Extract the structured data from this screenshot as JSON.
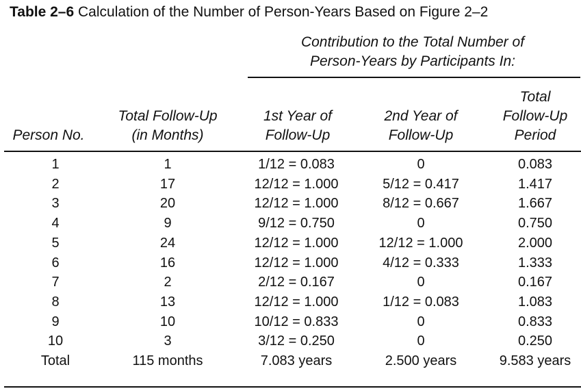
{
  "table": {
    "label": "Table 2–6",
    "title": "Calculation of the Number of Person-Years Based on Figure 2–2",
    "spanner_line1": "Contribution to the Total Number of",
    "spanner_line2": "Person-Years by Participants In:",
    "headers": {
      "person": [
        "Person No."
      ],
      "followup": [
        "Total Follow-Up",
        "(in Months)"
      ],
      "year1": [
        "1st Year of",
        "Follow-Up"
      ],
      "year2": [
        "2nd Year of",
        "Follow-Up"
      ],
      "total": [
        "Total",
        "Follow-Up",
        "Period"
      ]
    },
    "rows": [
      {
        "person": "1",
        "months": "1",
        "year1": "1/12 = 0.083",
        "year2": "0",
        "total": "0.083"
      },
      {
        "person": "2",
        "months": "17",
        "year1": "12/12 = 1.000",
        "year2": "5/12 = 0.417",
        "total": "1.417"
      },
      {
        "person": "3",
        "months": "20",
        "year1": "12/12 = 1.000",
        "year2": "8/12 = 0.667",
        "total": "1.667"
      },
      {
        "person": "4",
        "months": "9",
        "year1": "9/12 = 0.750",
        "year2": "0",
        "total": "0.750"
      },
      {
        "person": "5",
        "months": "24",
        "year1": "12/12 = 1.000",
        "year2": "12/12 = 1.000",
        "total": "2.000"
      },
      {
        "person": "6",
        "months": "16",
        "year1": "12/12 = 1.000",
        "year2": "4/12 = 0.333",
        "total": "1.333"
      },
      {
        "person": "7",
        "months": "2",
        "year1": "2/12 = 0.167",
        "year2": "0",
        "total": "0.167"
      },
      {
        "person": "8",
        "months": "13",
        "year1": "12/12 = 1.000",
        "year2": "1/12 = 0.083",
        "total": "1.083"
      },
      {
        "person": "9",
        "months": "10",
        "year1": "10/12 = 0.833",
        "year2": "0",
        "total": "0.833"
      },
      {
        "person": "10",
        "months": "3",
        "year1": "3/12 = 0.250",
        "year2": "0",
        "total": "0.250"
      }
    ],
    "total_row": {
      "person": "Total",
      "months": "115 months",
      "year1": "7.083 years",
      "year2": "2.500 years",
      "total": "9.583 years"
    }
  }
}
